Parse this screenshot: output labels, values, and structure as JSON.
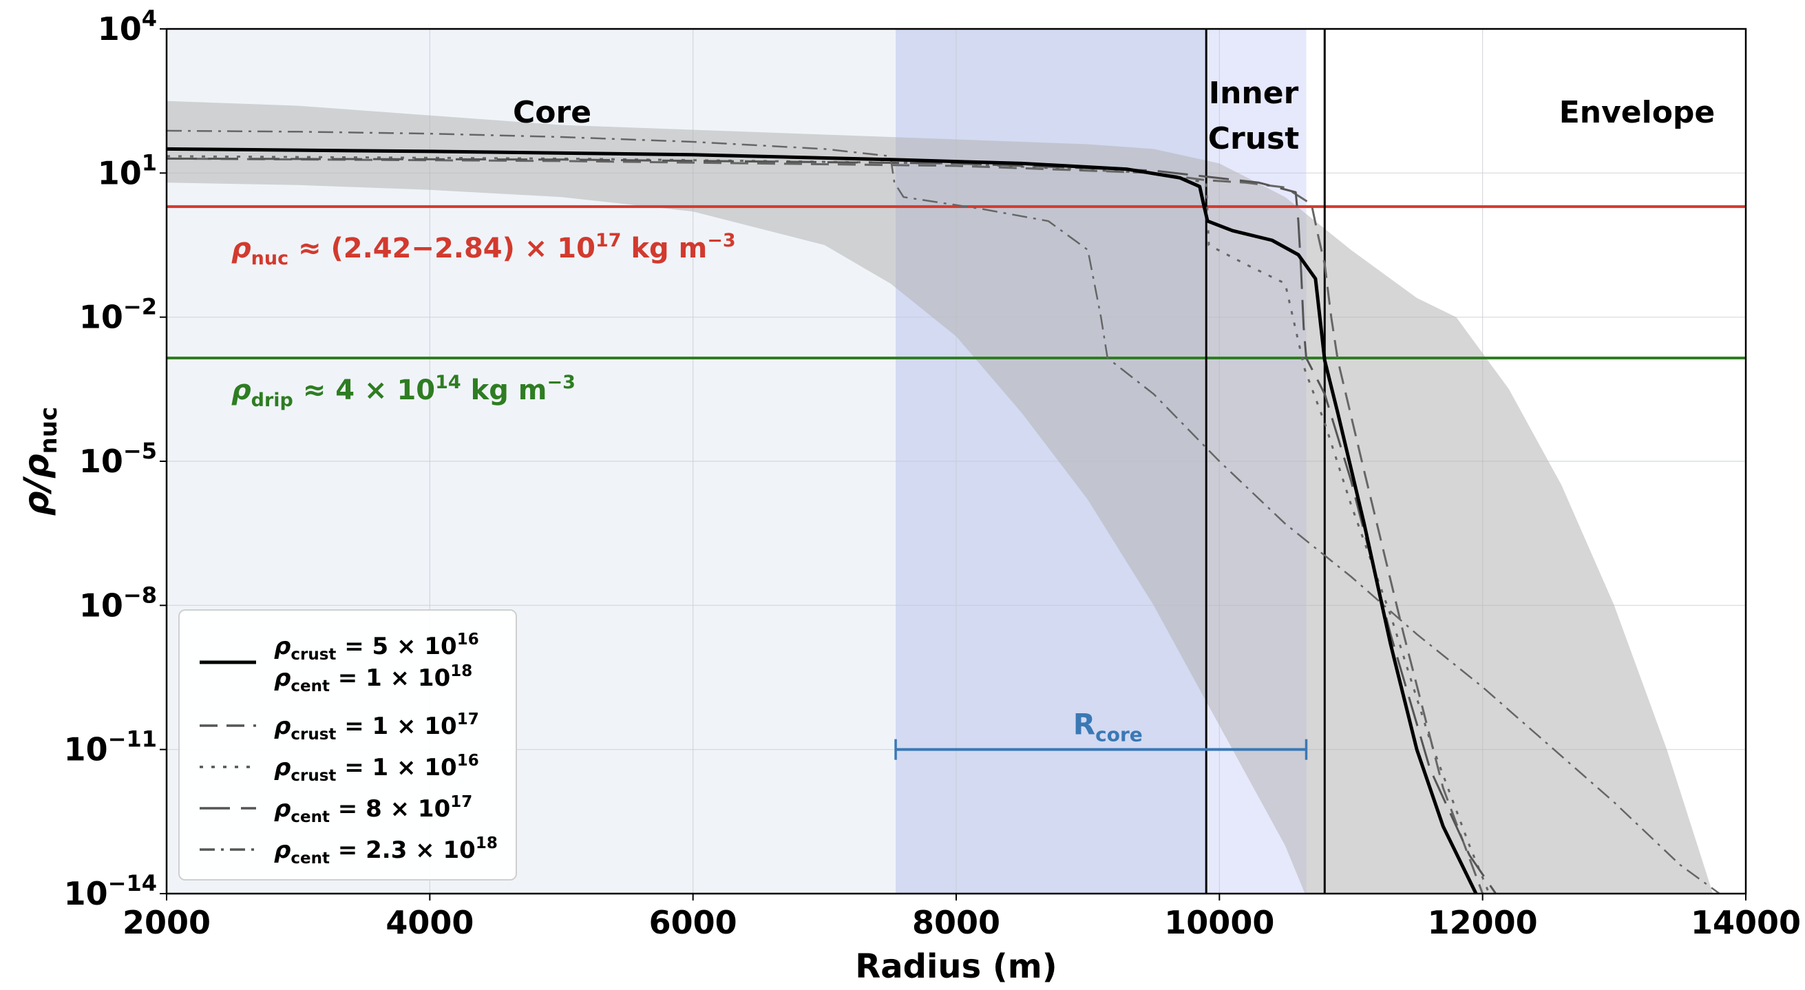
{
  "chart_data": {
    "type": "line",
    "xlabel": "Radius (m)",
    "ylabel_main": "ρ/ρ",
    "ylabel_sub": "nuc",
    "yscale": "log",
    "xlim": [
      2000,
      14000
    ],
    "ylim_exp": [
      -14,
      4
    ],
    "x_ticks": [
      {
        "value": 2000,
        "label": "2000"
      },
      {
        "value": 4000,
        "label": "4000"
      },
      {
        "value": 6000,
        "label": "6000"
      },
      {
        "value": 8000,
        "label": "8000"
      },
      {
        "value": 10000,
        "label": "10000"
      },
      {
        "value": 12000,
        "label": "12000"
      },
      {
        "value": 14000,
        "label": "14000"
      }
    ],
    "y_ticks": [
      {
        "exp": 4,
        "base": "10",
        "sup": "4"
      },
      {
        "exp": 1,
        "base": "10",
        "sup": "1"
      },
      {
        "exp": -2,
        "base": "10",
        "sup": "−2"
      },
      {
        "exp": -5,
        "base": "10",
        "sup": "−5"
      },
      {
        "exp": -8,
        "base": "10",
        "sup": "−8"
      },
      {
        "exp": -11,
        "base": "10",
        "sup": "−11"
      },
      {
        "exp": -14,
        "base": "10",
        "sup": "−14"
      }
    ],
    "regions": [
      {
        "name": "core-region",
        "label": "Core",
        "x_range": [
          2000,
          9900
        ],
        "color": "#f0f4f9"
      },
      {
        "name": "rcore-band",
        "label": "",
        "x_range": [
          7540,
          10660
        ],
        "color": "#d3daf2"
      },
      {
        "name": "inner-crust-region",
        "label": "Inner Crust",
        "label_line1": "Inner",
        "label_line2": "Crust",
        "x_range": [
          9900,
          10660
        ],
        "color": "#e6e8fc"
      },
      {
        "name": "envelope-region",
        "label": "Envelope",
        "x_range": [
          10800,
          14000
        ],
        "color": "#ffffff"
      }
    ],
    "vertical_lines": [
      9900,
      10800
    ],
    "horizontal_lines": [
      {
        "name": "rho-nuc-line",
        "log_y": 0.3,
        "color": "#d23a2e",
        "label_sym": "ρ",
        "label_sub": "nuc",
        "label_rest": "≈ (2.42−2.84) × 10",
        "label_sup": "17",
        "label_unit": "kg m",
        "label_unit_sup": "−3"
      },
      {
        "name": "rho-drip-line",
        "log_y": -2.85,
        "color": "#2e7d22",
        "label_sym": "ρ",
        "label_sub": "drip",
        "label_rest": "≈ 4 × 10",
        "label_sup": "14",
        "label_unit": "kg m",
        "label_unit_sup": "−3"
      }
    ],
    "rcore": {
      "label": "R",
      "label_sub": "core",
      "x_start": 7540,
      "x_end": 10660,
      "log_y": -11,
      "color": "#3a78b5"
    },
    "uncertainty_band": {
      "color": "#b4b4b4",
      "upper": [
        [
          2000,
          2.5
        ],
        [
          3000,
          2.4
        ],
        [
          5000,
          2.0
        ],
        [
          7000,
          1.8
        ],
        [
          8000,
          1.7
        ],
        [
          9000,
          1.6
        ],
        [
          9500,
          1.5
        ],
        [
          10000,
          1.2
        ],
        [
          10500,
          0.5
        ],
        [
          11000,
          -0.6
        ],
        [
          11500,
          -1.6
        ],
        [
          11800,
          -2.0
        ],
        [
          12200,
          -3.5
        ],
        [
          12600,
          -5.5
        ],
        [
          13000,
          -8.0
        ],
        [
          13400,
          -11.0
        ],
        [
          13750,
          -14.0
        ]
      ],
      "lower": [
        [
          2000,
          0.8
        ],
        [
          3000,
          0.75
        ],
        [
          4000,
          0.65
        ],
        [
          5000,
          0.5
        ],
        [
          6000,
          0.2
        ],
        [
          7000,
          -0.5
        ],
        [
          7500,
          -1.3
        ],
        [
          8000,
          -2.4
        ],
        [
          8500,
          -4.0
        ],
        [
          9000,
          -5.8
        ],
        [
          9500,
          -8.0
        ],
        [
          10000,
          -10.5
        ],
        [
          10500,
          -13.0
        ],
        [
          10650,
          -14.0
        ]
      ]
    },
    "series": [
      {
        "name": "ρ_crust = 5 × 10^16, ρ_cent = 1 × 10^18",
        "style": "solid",
        "width": 5,
        "color": "#000000",
        "points": [
          [
            2000,
            1.5
          ],
          [
            4000,
            1.45
          ],
          [
            6000,
            1.38
          ],
          [
            7500,
            1.28
          ],
          [
            8500,
            1.2
          ],
          [
            9300,
            1.08
          ],
          [
            9700,
            0.9
          ],
          [
            9850,
            0.72
          ],
          [
            9880,
            0.35
          ],
          [
            9910,
            0.0
          ],
          [
            10100,
            -0.2
          ],
          [
            10400,
            -0.4
          ],
          [
            10600,
            -0.7
          ],
          [
            10730,
            -1.2
          ],
          [
            10780,
            -2.4
          ],
          [
            10800,
            -2.9
          ],
          [
            10900,
            -4.0
          ],
          [
            11100,
            -6.3
          ],
          [
            11300,
            -8.8
          ],
          [
            11500,
            -11.0
          ],
          [
            11700,
            -12.6
          ],
          [
            11950,
            -14.0
          ]
        ]
      },
      {
        "name": "ρ_crust = 1 × 10^17",
        "style": "dashed",
        "width": 3,
        "color": "#666666",
        "points": [
          [
            2000,
            1.3
          ],
          [
            5000,
            1.25
          ],
          [
            8000,
            1.15
          ],
          [
            9500,
            1.0
          ],
          [
            9900,
            0.85
          ],
          [
            10200,
            0.8
          ],
          [
            10500,
            0.7
          ],
          [
            10700,
            0.35
          ],
          [
            10750,
            -0.3
          ],
          [
            10800,
            -0.9
          ],
          [
            10850,
            -2.0
          ],
          [
            10900,
            -2.9
          ],
          [
            11100,
            -5.2
          ],
          [
            11400,
            -8.6
          ],
          [
            11700,
            -11.8
          ],
          [
            12000,
            -14.0
          ]
        ]
      },
      {
        "name": "ρ_crust = 1 × 10^16",
        "style": "dotted",
        "width": 3,
        "color": "#666666",
        "points": [
          [
            2000,
            1.35
          ],
          [
            5000,
            1.3
          ],
          [
            8000,
            1.2
          ],
          [
            9500,
            1.0
          ],
          [
            9900,
            0.8
          ],
          [
            9920,
            -0.5
          ],
          [
            10200,
            -0.9
          ],
          [
            10500,
            -1.3
          ],
          [
            10600,
            -2.5
          ],
          [
            10650,
            -3.1
          ],
          [
            10800,
            -4.2
          ],
          [
            11000,
            -5.9
          ],
          [
            11300,
            -8.2
          ],
          [
            11600,
            -10.8
          ],
          [
            11900,
            -13.0
          ],
          [
            12050,
            -14.0
          ]
        ]
      },
      {
        "name": "ρ_cent = 8 × 10^17",
        "style": "longdash",
        "width": 3,
        "color": "#555555",
        "points": [
          [
            2000,
            1.3
          ],
          [
            5000,
            1.28
          ],
          [
            8000,
            1.2
          ],
          [
            9500,
            1.05
          ],
          [
            10300,
            0.8
          ],
          [
            10580,
            0.6
          ],
          [
            10600,
            0.0
          ],
          [
            10620,
            -1.0
          ],
          [
            10640,
            -2.2
          ],
          [
            10660,
            -2.85
          ],
          [
            10800,
            -3.6
          ],
          [
            11000,
            -5.4
          ],
          [
            11300,
            -8.6
          ],
          [
            11600,
            -11.4
          ],
          [
            11900,
            -13.2
          ],
          [
            12100,
            -14.0
          ]
        ]
      },
      {
        "name": "ρ_cent = 2.3 × 10^18",
        "style": "dashdot",
        "width": 2.5,
        "color": "#666666",
        "points": [
          [
            2000,
            1.88
          ],
          [
            3000,
            1.86
          ],
          [
            4000,
            1.82
          ],
          [
            5000,
            1.75
          ],
          [
            6000,
            1.65
          ],
          [
            7000,
            1.5
          ],
          [
            7500,
            1.35
          ],
          [
            7530,
            0.8
          ],
          [
            7600,
            0.5
          ],
          [
            8200,
            0.25
          ],
          [
            8700,
            0.0
          ],
          [
            9000,
            -0.6
          ],
          [
            9100,
            -2.0
          ],
          [
            9150,
            -2.85
          ],
          [
            9500,
            -3.6
          ],
          [
            10000,
            -5.0
          ],
          [
            10500,
            -6.3
          ],
          [
            11000,
            -7.4
          ],
          [
            11500,
            -8.6
          ],
          [
            12000,
            -9.7
          ],
          [
            12500,
            -10.9
          ],
          [
            13000,
            -12.1
          ],
          [
            13500,
            -13.4
          ],
          [
            13800,
            -14.0
          ]
        ]
      }
    ],
    "legend": {
      "position": "lower-left",
      "entries": [
        {
          "style": "solid",
          "line1_sym": "ρ",
          "line1_sub": "crust",
          "line1_rest": " = 5 × 10",
          "line1_sup": "16",
          "line2_sym": "ρ",
          "line2_sub": "cent",
          "line2_rest": " = 1 × 10",
          "line2_sup": "18"
        },
        {
          "style": "dashed",
          "line1_sym": "ρ",
          "line1_sub": "crust",
          "line1_rest": " = 1 × 10",
          "line1_sup": "17"
        },
        {
          "style": "dotted",
          "line1_sym": "ρ",
          "line1_sub": "crust",
          "line1_rest": " = 1 × 10",
          "line1_sup": "16"
        },
        {
          "style": "longdash",
          "line1_sym": "ρ",
          "line1_sub": "cent",
          "line1_rest": " = 8 × 10",
          "line1_sup": "17"
        },
        {
          "style": "dashdot",
          "line1_sym": "ρ",
          "line1_sub": "cent",
          "line1_rest": " = 2.3 × 10",
          "line1_sup": "18"
        }
      ]
    }
  }
}
